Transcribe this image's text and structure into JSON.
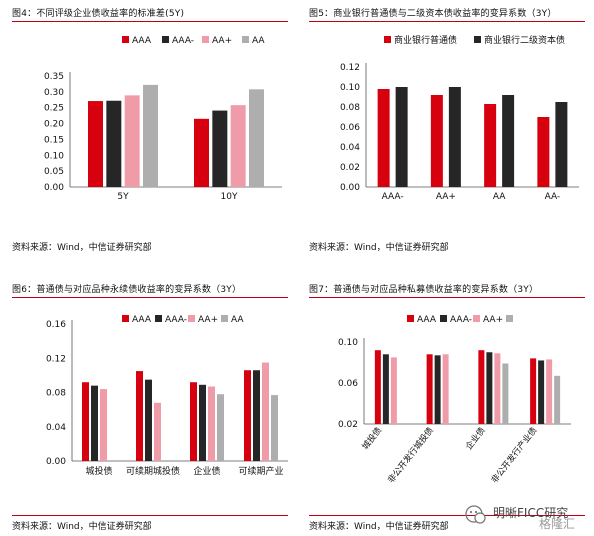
{
  "colors": {
    "red": "#D7000F",
    "black": "#262626",
    "pink": "#F09CA8",
    "grey": "#AEAEAE",
    "rule": "#C00010"
  },
  "panels": [
    {
      "title": "图4：不同评级企业债收益率的标准差(5Y)",
      "source": "资料来源：Wind，中信证券研究部"
    },
    {
      "title": "图5：商业银行普通债与二级资本债收益率的变异系数（3Y）",
      "source": "资料来源：Wind，中信证券研究部"
    },
    {
      "title": "图6：普通债与对应品种永续债收益率的变异系数（3Y）",
      "source": "资料来源：Wind，中信证券研究部"
    },
    {
      "title": "图7：普通债与对应品种私募债收益率的变异系数（3Y）",
      "source": "资料来源：Wind，中信证券研究部"
    }
  ],
  "watermark": {
    "text": "明晰FICC研究",
    "sub": "格隆汇"
  },
  "chart_data": [
    {
      "type": "bar",
      "title": "图4：不同评级企业债收益率的标准差(5Y)",
      "categories": [
        "5Y",
        "10Y"
      ],
      "series": [
        {
          "name": "AAA",
          "color": "#D7000F",
          "values": [
            0.271,
            0.215
          ]
        },
        {
          "name": "AAA-",
          "color": "#262626",
          "values": [
            0.272,
            0.241
          ]
        },
        {
          "name": "AA+",
          "color": "#F09CA8",
          "values": [
            0.289,
            0.258
          ]
        },
        {
          "name": "AA",
          "color": "#AEAEAE",
          "values": [
            0.322,
            0.308
          ]
        }
      ],
      "yticks": [
        "0.00",
        "0.05",
        "0.10",
        "0.15",
        "0.20",
        "0.25",
        "0.30",
        "0.35"
      ],
      "ylim": [
        0,
        0.35
      ],
      "legend": "top-left",
      "grid": false
    },
    {
      "type": "bar",
      "title": "图5：商业银行普通债与二级资本债收益率的变异系数（3Y）",
      "categories": [
        "AAA-",
        "AA+",
        "AA",
        "AA-"
      ],
      "series": [
        {
          "name": "商业银行普通债",
          "color": "#D7000F",
          "values": [
            0.098,
            0.092,
            0.083,
            0.07
          ]
        },
        {
          "name": "商业银行二级资本债",
          "color": "#262626",
          "values": [
            0.1,
            0.1,
            0.092,
            0.085
          ]
        }
      ],
      "yticks": [
        "0.00",
        "0.02",
        "0.04",
        "0.06",
        "0.08",
        "0.10",
        "0.12"
      ],
      "ylim": [
        0,
        0.12
      ],
      "legend": "top-center",
      "grid": false
    },
    {
      "type": "bar",
      "title": "图6：普通债与对应品种永续债收益率的变异系数（3Y）",
      "categories": [
        "城投债",
        "可续期城投债",
        "企业债",
        "可续期产业"
      ],
      "series": [
        {
          "name": "AAA",
          "color": "#D7000F",
          "values": [
            0.092,
            0.105,
            0.092,
            0.106
          ]
        },
        {
          "name": "AAA-",
          "color": "#262626",
          "values": [
            0.088,
            0.095,
            0.089,
            0.106
          ]
        },
        {
          "name": "AA+",
          "color": "#F09CA8",
          "values": [
            0.084,
            0.068,
            0.087,
            0.115
          ]
        },
        {
          "name": "AA",
          "color": "#AEAEAE",
          "values": [
            null,
            null,
            0.078,
            0.077
          ]
        }
      ],
      "yticks": [
        "0.00",
        "0.04",
        "0.08",
        "0.12",
        "0.16"
      ],
      "ylim": [
        0,
        0.16
      ],
      "legend": "top-center",
      "grid": false
    },
    {
      "type": "bar",
      "title": "图7：普通债与对应品种私募债收益率的变异系数（3Y）",
      "categories": [
        "城投债",
        "非公开发行城投债",
        "企业债",
        "非公开发行产业债"
      ],
      "series": [
        {
          "name": "AAA",
          "color": "#D7000F",
          "values": [
            0.092,
            0.088,
            0.092,
            0.084
          ]
        },
        {
          "name": "AAA-",
          "color": "#262626",
          "values": [
            0.088,
            0.087,
            0.09,
            0.082
          ]
        },
        {
          "name": "AA+",
          "color": "#F09CA8",
          "values": [
            0.085,
            0.088,
            0.089,
            0.083
          ]
        },
        {
          "name": "",
          "color": "#AEAEAE",
          "values": [
            null,
            null,
            0.079,
            0.067
          ]
        }
      ],
      "yticks": [
        "0.02",
        "0.06",
        "0.10"
      ],
      "ylim": [
        0.02,
        0.1
      ],
      "legend": "top-center",
      "grid": false,
      "rotated_xlabels": true
    }
  ]
}
